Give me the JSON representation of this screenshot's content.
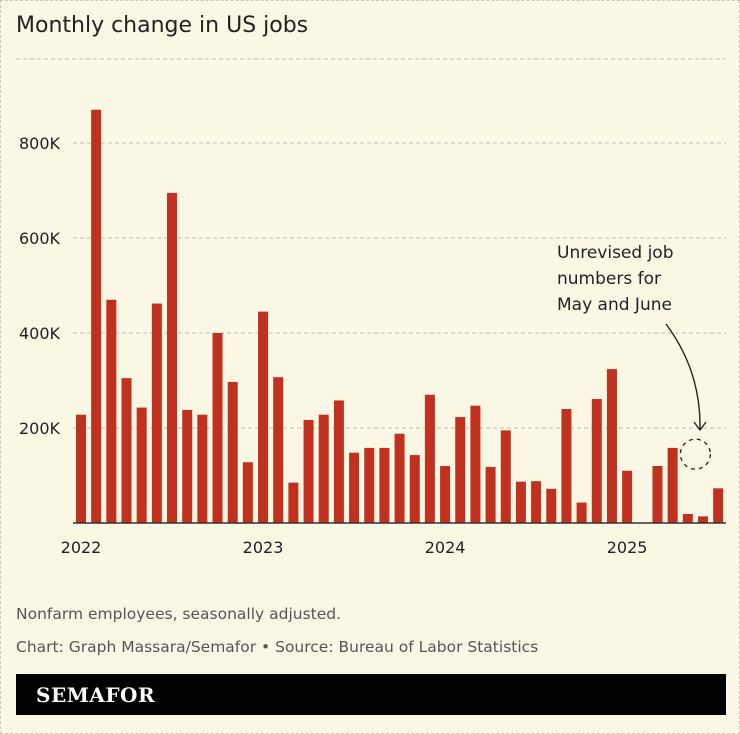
{
  "chart_data": {
    "type": "bar",
    "title": "Monthly change in US jobs",
    "xlabel": "",
    "ylabel": "",
    "ylim": [
      0,
      900000
    ],
    "yticks": [
      200000,
      400000,
      600000,
      800000
    ],
    "ytick_labels": [
      "200K",
      "400K",
      "600K",
      "800K"
    ],
    "xtick_labels": [
      "2022",
      "2023",
      "2024",
      "2025"
    ],
    "grid": true,
    "bar_color": "#c0311f",
    "categories": [
      "2022-01",
      "2022-02",
      "2022-03",
      "2022-04",
      "2022-05",
      "2022-06",
      "2022-07",
      "2022-08",
      "2022-09",
      "2022-10",
      "2022-11",
      "2022-12",
      "2023-01",
      "2023-02",
      "2023-03",
      "2023-04",
      "2023-05",
      "2023-06",
      "2023-07",
      "2023-08",
      "2023-09",
      "2023-10",
      "2023-11",
      "2023-12",
      "2024-01",
      "2024-02",
      "2024-03",
      "2024-04",
      "2024-05",
      "2024-06",
      "2024-07",
      "2024-08",
      "2024-09",
      "2024-10",
      "2024-11",
      "2024-12",
      "2025-01",
      "2025-02",
      "2025-03",
      "2025-04",
      "2025-05",
      "2025-06",
      "2025-07"
    ],
    "values": [
      228000,
      870000,
      470000,
      305000,
      243000,
      462000,
      695000,
      238000,
      228000,
      400000,
      297000,
      128000,
      445000,
      307000,
      85000,
      217000,
      228000,
      258000,
      148000,
      158000,
      158000,
      188000,
      143000,
      270000,
      120000,
      223000,
      247000,
      118000,
      195000,
      87000,
      88000,
      72000,
      240000,
      43000,
      261000,
      324000,
      110000,
      null,
      120000,
      158000,
      19000,
      14000,
      73000
    ],
    "annotation": {
      "text_lines": [
        "Unrevised job",
        "numbers for",
        "May and June"
      ],
      "unrevised_value_approx": 145000
    }
  },
  "footer": {
    "note": "Nonfarm employees, seasonally adjusted.",
    "credit": "Chart: Graph Massara/Semafor • Source: Bureau of Labor Statistics",
    "brand": "SEMAFOR"
  }
}
